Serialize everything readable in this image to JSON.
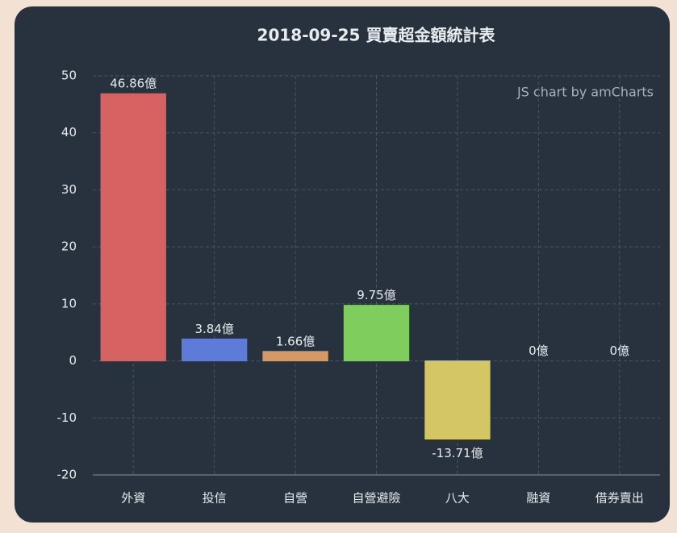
{
  "chart_data": {
    "type": "bar",
    "title": "2018-09-25 買賣超金額統計表",
    "credit": "JS chart by amCharts",
    "categories": [
      "外資",
      "投信",
      "自營",
      "自營避險",
      "八大",
      "融資",
      "借券賣出"
    ],
    "values": [
      46.86,
      3.84,
      1.66,
      9.75,
      -13.71,
      0,
      0
    ],
    "value_labels": [
      "46.86億",
      "3.84億",
      "1.66億",
      "9.75億",
      "-13.71億",
      "0億",
      "0億"
    ],
    "colors": [
      "#d66262",
      "#5d7bd9",
      "#d59a63",
      "#7fcd5c",
      "#d4c565",
      "#d67a7a",
      "#d67a7a"
    ],
    "ylim": [
      -20,
      50
    ],
    "yticks": [
      -20,
      -10,
      0,
      10,
      20,
      30,
      40,
      50
    ],
    "grid": true
  }
}
